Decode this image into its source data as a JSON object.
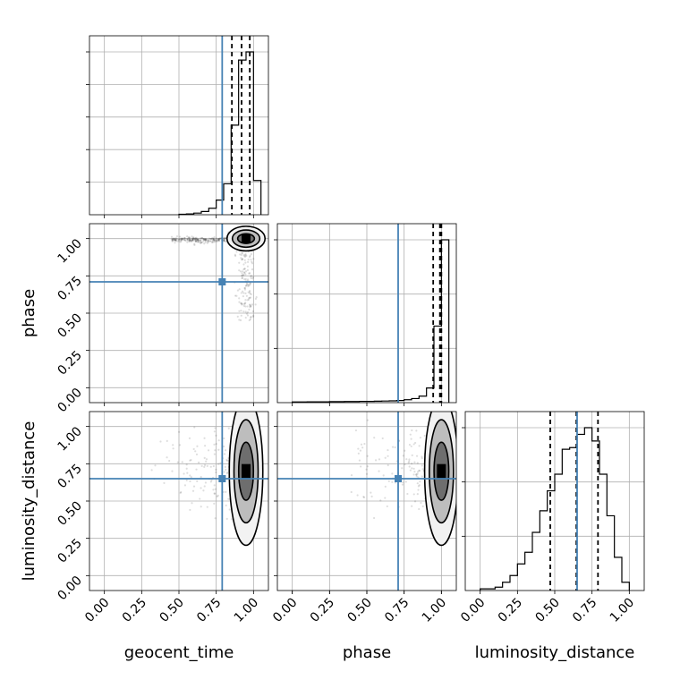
{
  "chart_data": {
    "type": "corner",
    "parameters": [
      "geocent_time",
      "phase",
      "luminosity_distance"
    ],
    "truth": {
      "geocent_time": 0.79,
      "phase": 0.71,
      "luminosity_distance": 0.65
    },
    "axis_range": [
      -0.1,
      1.1
    ],
    "tick_labels": [
      "0.00",
      "0.25",
      "0.50",
      "0.75",
      "1.00"
    ],
    "tick_values": [
      0,
      0.25,
      0.5,
      0.75,
      1.0
    ],
    "colors": {
      "truth": "#4682b4",
      "hist": "#000000",
      "grid": "#b0b0b0"
    },
    "grid": true,
    "histograms": [
      {
        "parameter": "geocent_time",
        "bins": [
          [
            0.5,
            0.55,
            0.003
          ],
          [
            0.55,
            0.6,
            0.005
          ],
          [
            0.6,
            0.65,
            0.01
          ],
          [
            0.65,
            0.7,
            0.02
          ],
          [
            0.7,
            0.75,
            0.04
          ],
          [
            0.75,
            0.8,
            0.09
          ],
          [
            0.8,
            0.85,
            0.19
          ],
          [
            0.85,
            0.9,
            0.55
          ],
          [
            0.9,
            0.95,
            0.95
          ],
          [
            0.95,
            1.0,
            1.0
          ],
          [
            1.0,
            1.05,
            0.21
          ]
        ],
        "quantiles": [
          0.855,
          0.92,
          0.975
        ]
      },
      {
        "parameter": "phase",
        "bins": [
          [
            0.0,
            0.05,
            0.004
          ],
          [
            0.05,
            0.1,
            0.004
          ],
          [
            0.1,
            0.15,
            0.005
          ],
          [
            0.15,
            0.2,
            0.005
          ],
          [
            0.2,
            0.25,
            0.005
          ],
          [
            0.25,
            0.3,
            0.006
          ],
          [
            0.3,
            0.35,
            0.006
          ],
          [
            0.35,
            0.4,
            0.007
          ],
          [
            0.4,
            0.45,
            0.007
          ],
          [
            0.45,
            0.5,
            0.008
          ],
          [
            0.5,
            0.55,
            0.008
          ],
          [
            0.55,
            0.6,
            0.009
          ],
          [
            0.6,
            0.65,
            0.01
          ],
          [
            0.65,
            0.7,
            0.011
          ],
          [
            0.7,
            0.75,
            0.013
          ],
          [
            0.75,
            0.8,
            0.018
          ],
          [
            0.8,
            0.85,
            0.025
          ],
          [
            0.85,
            0.9,
            0.04
          ],
          [
            0.9,
            0.95,
            0.09
          ],
          [
            0.95,
            1.0,
            0.47
          ],
          [
            1.0,
            1.05,
            1.0
          ]
        ],
        "quantiles": [
          0.945,
          0.99,
          1.0
        ]
      },
      {
        "parameter": "luminosity_distance",
        "bins": [
          [
            0.0,
            0.05,
            0.01
          ],
          [
            0.05,
            0.1,
            0.01
          ],
          [
            0.1,
            0.15,
            0.02
          ],
          [
            0.15,
            0.2,
            0.05
          ],
          [
            0.2,
            0.25,
            0.09
          ],
          [
            0.25,
            0.3,
            0.16
          ],
          [
            0.3,
            0.35,
            0.23
          ],
          [
            0.35,
            0.4,
            0.35
          ],
          [
            0.4,
            0.45,
            0.48
          ],
          [
            0.45,
            0.5,
            0.6
          ],
          [
            0.5,
            0.55,
            0.7
          ],
          [
            0.55,
            0.6,
            0.85
          ],
          [
            0.6,
            0.65,
            0.86
          ],
          [
            0.65,
            0.7,
            0.94
          ],
          [
            0.7,
            0.75,
            0.98
          ],
          [
            0.75,
            0.8,
            0.9
          ],
          [
            0.8,
            0.85,
            0.7
          ],
          [
            0.85,
            0.9,
            0.45
          ],
          [
            0.9,
            0.95,
            0.2
          ],
          [
            0.95,
            1.0,
            0.05
          ]
        ],
        "quantiles": [
          0.47,
          0.645,
          0.79
        ]
      }
    ],
    "scatter_panels": [
      {
        "x": "geocent_time",
        "y": "phase",
        "x_center": 0.95,
        "y_center": 1.0
      },
      {
        "x": "geocent_time",
        "y": "luminosity_distance",
        "x_center": 0.95,
        "y_center": 0.7
      },
      {
        "x": "phase",
        "y": "luminosity_distance",
        "x_center": 1.0,
        "y_center": 0.7
      }
    ]
  }
}
